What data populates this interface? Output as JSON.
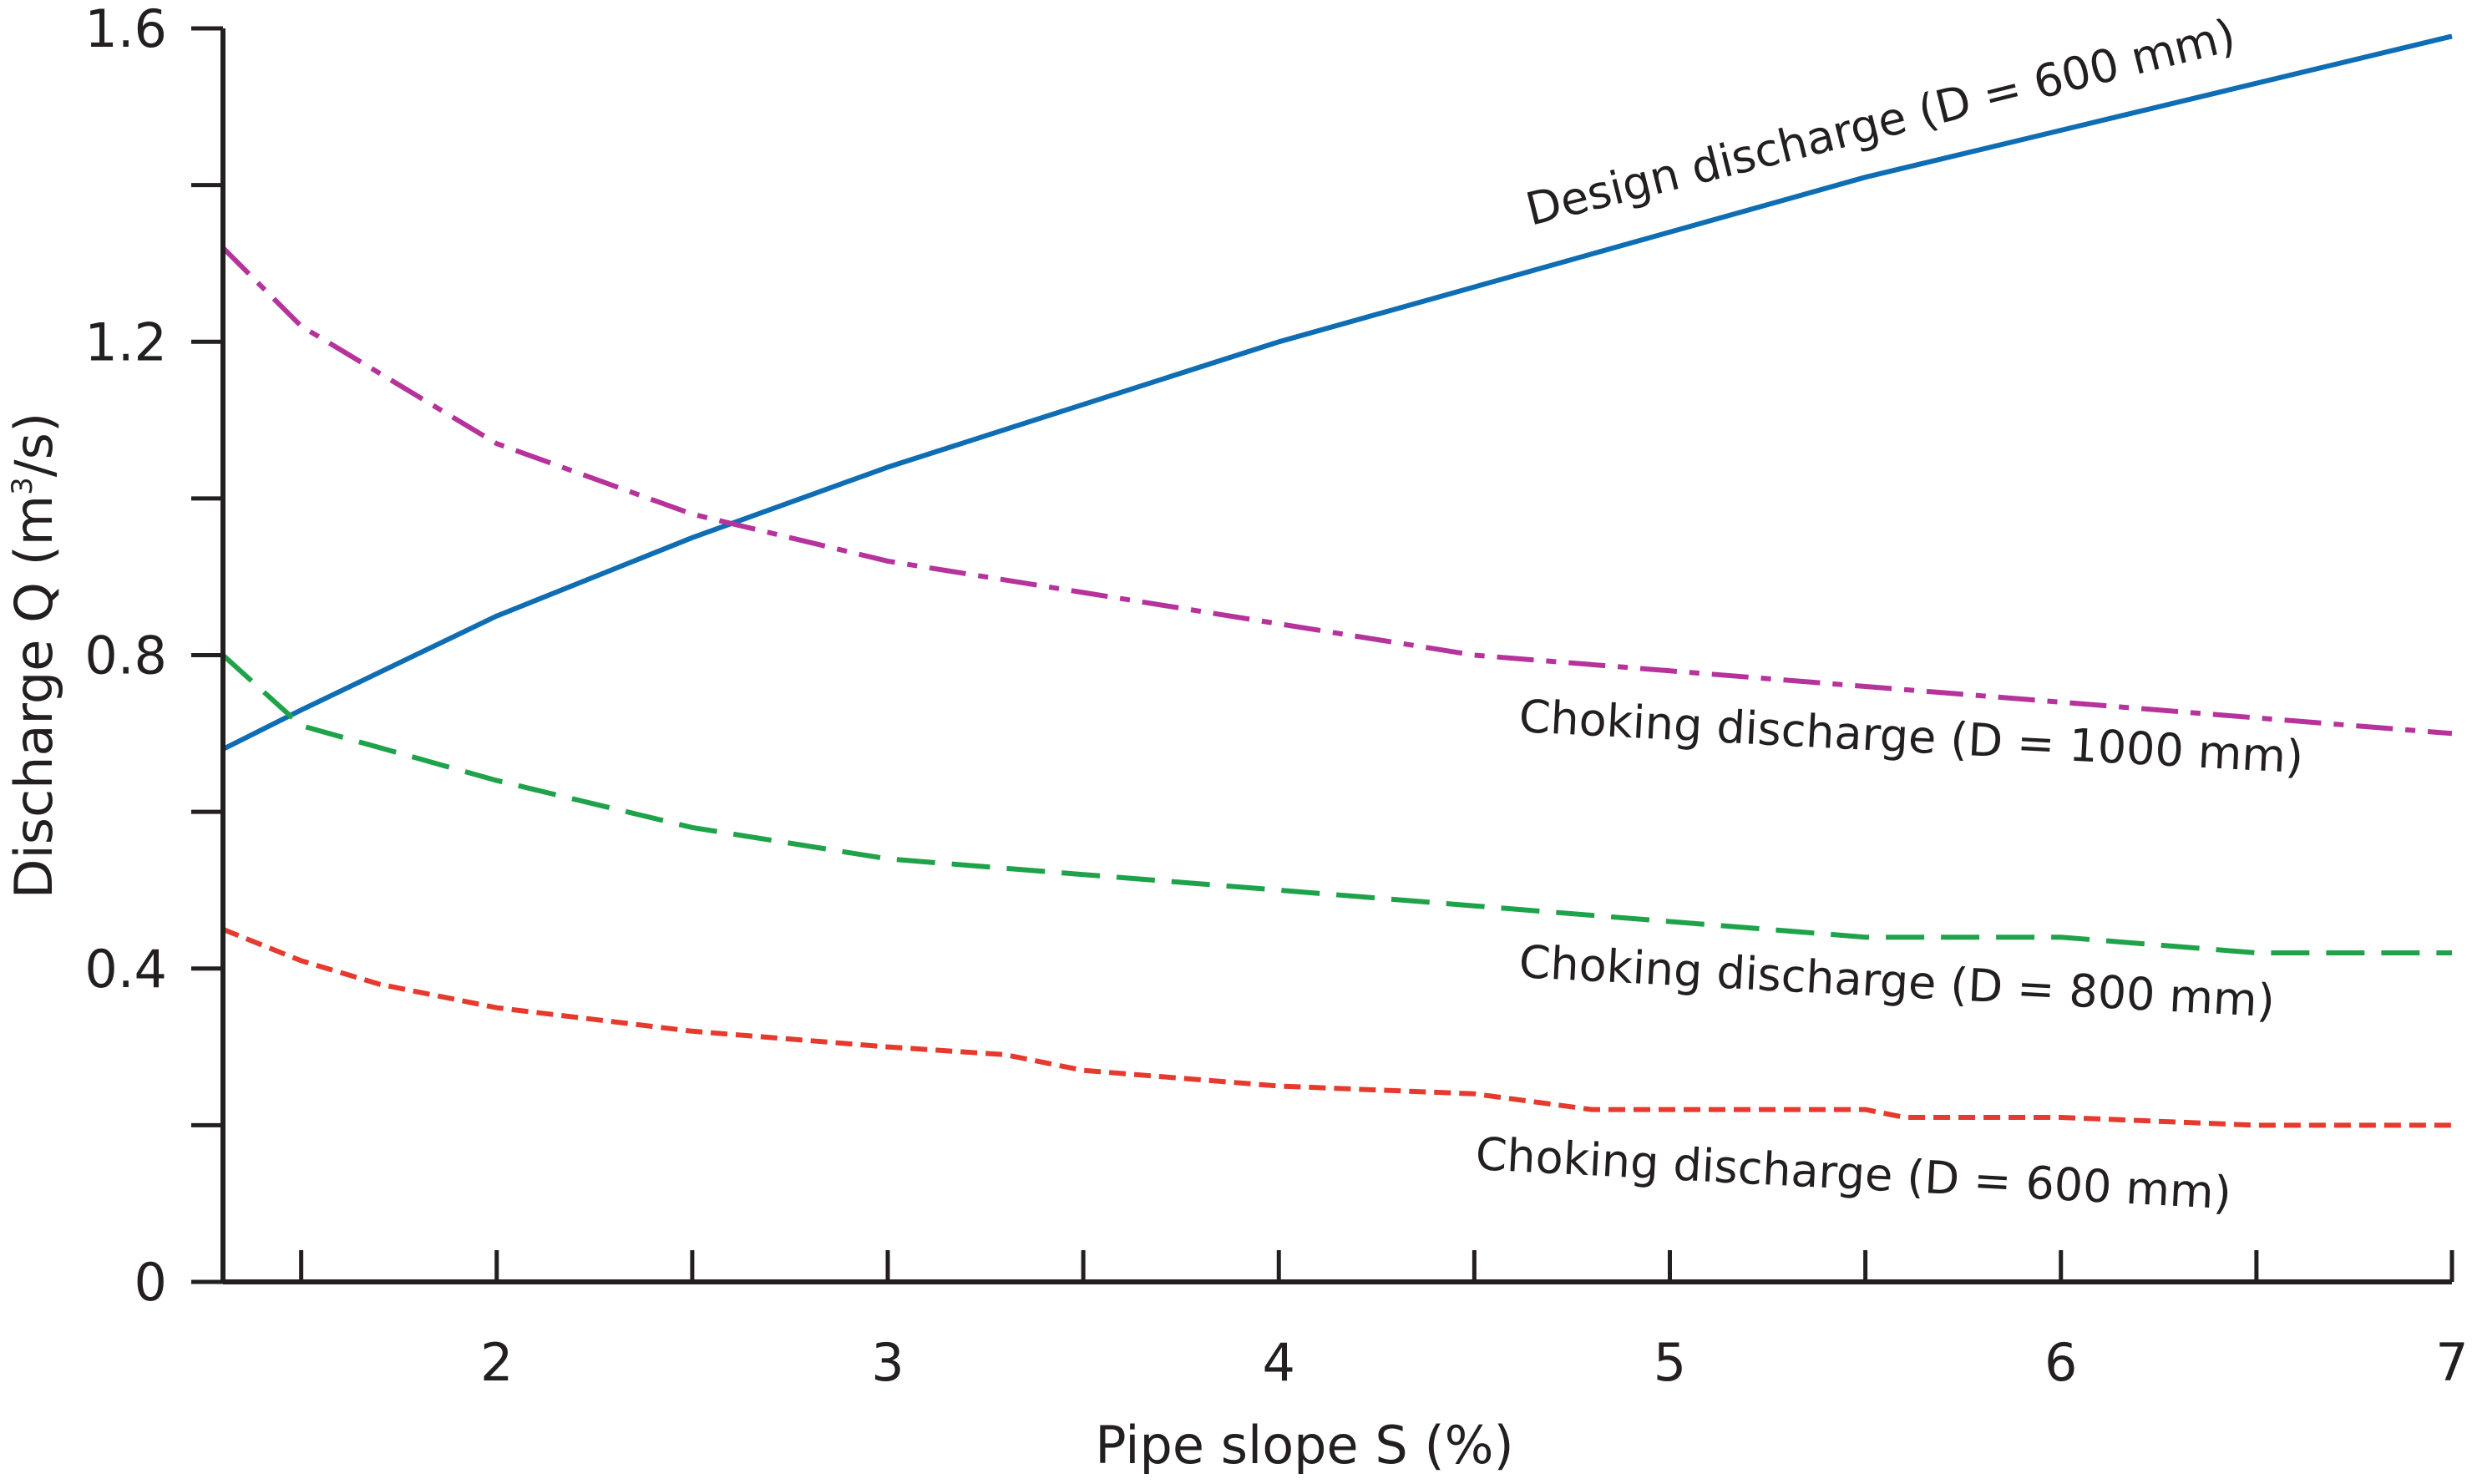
{
  "chart_data": {
    "type": "line",
    "title": "",
    "xlabel": "Pipe slope S (%)",
    "ylabel": {
      "prefix": "Discharge Q (m",
      "superscript": "3",
      "suffix": "/s)"
    },
    "xlim": [
      1.3,
      7
    ],
    "ylim": [
      0,
      1.6
    ],
    "x_major_ticks": [
      2,
      3,
      4,
      5,
      6,
      7
    ],
    "x_major_tick_labels": [
      "2",
      "3",
      "4",
      "5",
      "6",
      "7"
    ],
    "x_minor_ticks": [
      1.5,
      2.5,
      3.5,
      4.5,
      5.5,
      6.5
    ],
    "y_major_ticks": [
      0,
      0.4,
      0.8,
      1.2,
      1.6
    ],
    "y_major_tick_labels": [
      "0",
      "0.4",
      "0.8",
      "1.2",
      "1.6"
    ],
    "y_minor_ticks": [
      0.2,
      0.6,
      1.0,
      1.4
    ],
    "grid": false,
    "series": [
      {
        "name": "Design discharge (D = 600 mm)",
        "label": "Design discharge (D = 600 mm)",
        "color": "#0f6db3",
        "style": "solid",
        "x": [
          1.3,
          1.5,
          2.0,
          2.5,
          3.0,
          3.5,
          4.0,
          4.5,
          5.0,
          5.5,
          6.0,
          6.5,
          7.0
        ],
        "values": [
          0.68,
          0.73,
          0.85,
          0.95,
          1.04,
          1.12,
          1.2,
          1.27,
          1.34,
          1.41,
          1.47,
          1.53,
          1.59
        ]
      },
      {
        "name": "Choking discharge (D = 1000 mm)",
        "label": "Choking discharge (D = 1000 mm)",
        "color": "#b5339b",
        "style": "dashdot",
        "x": [
          1.3,
          1.5,
          2.0,
          2.5,
          3.0,
          3.5,
          4.0,
          4.5,
          5.0,
          5.5,
          6.0,
          6.5,
          7.0
        ],
        "values": [
          1.32,
          1.22,
          1.07,
          0.98,
          0.92,
          0.88,
          0.84,
          0.8,
          0.78,
          0.76,
          0.74,
          0.72,
          0.7
        ]
      },
      {
        "name": "Choking discharge (D = 800 mm)",
        "label": "Choking discharge (D = 800 mm)",
        "color": "#1fa34a",
        "style": "dashed",
        "x": [
          1.3,
          1.5,
          2.0,
          2.5,
          3.0,
          3.5,
          4.0,
          4.5,
          5.0,
          5.5,
          6.0,
          6.5,
          7.0
        ],
        "values": [
          0.8,
          0.71,
          0.64,
          0.58,
          0.54,
          0.52,
          0.5,
          0.48,
          0.46,
          0.44,
          0.44,
          0.42,
          0.42
        ]
      },
      {
        "name": "Choking discharge (D = 600 mm)",
        "label": "Choking discharge (D = 600 mm)",
        "color": "#e53a2d",
        "style": "dotted",
        "x": [
          1.3,
          1.5,
          1.7,
          2.0,
          2.5,
          3.0,
          3.3,
          3.5,
          4.0,
          4.5,
          4.8,
          5.0,
          5.5,
          5.6,
          6.0,
          6.5,
          7.0
        ],
        "values": [
          0.45,
          0.41,
          0.38,
          0.35,
          0.32,
          0.3,
          0.29,
          0.27,
          0.25,
          0.24,
          0.22,
          0.22,
          0.22,
          0.21,
          0.21,
          0.2,
          0.2
        ]
      }
    ]
  }
}
